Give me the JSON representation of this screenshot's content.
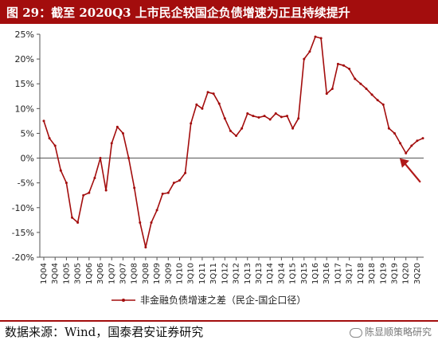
{
  "header": {
    "title": "图 29：截至 2020Q3 上市民企较国企负债增速为正且持续提升"
  },
  "footer": {
    "source": "数据来源：Wind，国泰君安证券研究",
    "watermark": "陈显顺策略研究"
  },
  "colors": {
    "series": "#a30d0d",
    "arrow": "#b01818",
    "axis": "#555555",
    "title_bg": "#a30d0d"
  },
  "chart_data": {
    "type": "line",
    "title": "图 29：截至 2020Q3 上市民企较国企负债增速为正且持续提升",
    "xlabel": "",
    "ylabel": "",
    "ylim": [
      -0.2,
      0.25
    ],
    "y_ticks": [
      "-20%",
      "-15%",
      "-10%",
      "-5%",
      "0%",
      "5%",
      "10%",
      "15%",
      "20%",
      "25%"
    ],
    "x_tick_labels": [
      "1Q04",
      "3Q04",
      "1Q05",
      "3Q05",
      "1Q06",
      "3Q06",
      "1Q07",
      "3Q07",
      "1Q08",
      "3Q08",
      "1Q09",
      "3Q09",
      "1Q10",
      "3Q10",
      "1Q11",
      "3Q11",
      "1Q12",
      "3Q12",
      "1Q13",
      "3Q13",
      "1Q14",
      "3Q14",
      "1Q15",
      "3Q15",
      "1Q16",
      "3Q16",
      "1Q17",
      "3Q17",
      "1Q18",
      "3Q18",
      "1Q19",
      "3Q19",
      "1Q20",
      "3Q20"
    ],
    "grid": false,
    "legend": {
      "position": "bottom"
    },
    "series": [
      {
        "name": "非金融负债增速之差（民企-国企口径）",
        "values": [
          0.075,
          0.04,
          0.025,
          -0.025,
          -0.05,
          -0.12,
          -0.13,
          -0.075,
          -0.07,
          -0.04,
          0.0,
          -0.065,
          0.03,
          0.063,
          0.05,
          0.0,
          -0.06,
          -0.13,
          -0.18,
          -0.13,
          -0.105,
          -0.072,
          -0.07,
          -0.05,
          -0.045,
          -0.03,
          0.07,
          0.108,
          0.1,
          0.133,
          0.13,
          0.11,
          0.08,
          0.055,
          0.045,
          0.06,
          0.09,
          0.085,
          0.082,
          0.085,
          0.078,
          0.09,
          0.083,
          0.085,
          0.06,
          0.08,
          0.2,
          0.215,
          0.245,
          0.242,
          0.13,
          0.14,
          0.19,
          0.187,
          0.18,
          0.16,
          0.15,
          0.14,
          0.128,
          0.117,
          0.108,
          0.06,
          0.05,
          0.03,
          0.01,
          0.025,
          0.035,
          0.04
        ]
      }
    ],
    "annotations": [
      {
        "type": "arrow",
        "target_index": 66
      }
    ]
  }
}
